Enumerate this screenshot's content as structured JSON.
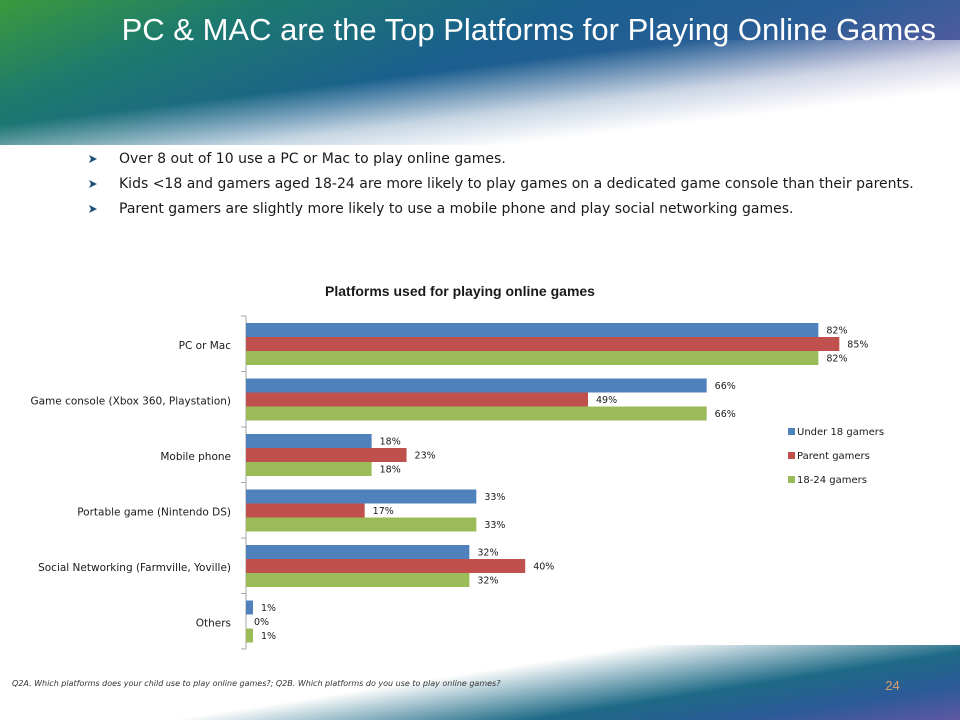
{
  "slide": {
    "title": "PC & MAC are the Top Platforms for Playing Online Games",
    "bullets": [
      "Over 8 out of 10 use a PC or Mac to play  online games.",
      "Kids <18 and gamers aged 18-24 are more likely to play games on a dedicated game console than their parents.",
      "Parent gamers are slightly more likely to use a mobile phone and play social networking games."
    ],
    "footnote": "Q2A. Which platforms does your child use to play online games?; Q2B. Which platforms do you use to play online games?",
    "page_number": "24"
  },
  "colors": {
    "under18": "#4f81bd",
    "parent": "#c0504d",
    "age18_24": "#9bbb59",
    "bullet": "#1f4e79",
    "axis": "#a6a6a6"
  },
  "chart_data": {
    "type": "bar",
    "orientation": "horizontal",
    "title": "Platforms used for playing online games",
    "categories": [
      "PC or Mac",
      "Game console (Xbox 360, Playstation)",
      "Mobile phone",
      "Portable game (Nintendo DS)",
      "Social Networking (Farmville, Yoville)",
      "Others"
    ],
    "series": [
      {
        "name": "Under 18 gamers",
        "values": [
          82,
          66,
          18,
          33,
          32,
          1
        ],
        "labels": [
          "82%",
          "66%",
          "18%",
          "33%",
          "32%",
          "1%"
        ]
      },
      {
        "name": "Parent gamers",
        "values": [
          85,
          49,
          23,
          17,
          40,
          0
        ],
        "labels": [
          "85%",
          "49%",
          "23%",
          "17%",
          "40%",
          "0%"
        ]
      },
      {
        "name": "18-24 gamers",
        "values": [
          82,
          66,
          18,
          33,
          32,
          1
        ],
        "labels": [
          "82%",
          "66%",
          "18%",
          "33%",
          "32%",
          "1%"
        ]
      }
    ],
    "xlim": [
      0,
      100
    ],
    "value_unit": "%",
    "grid": false,
    "legend_position": "right"
  }
}
